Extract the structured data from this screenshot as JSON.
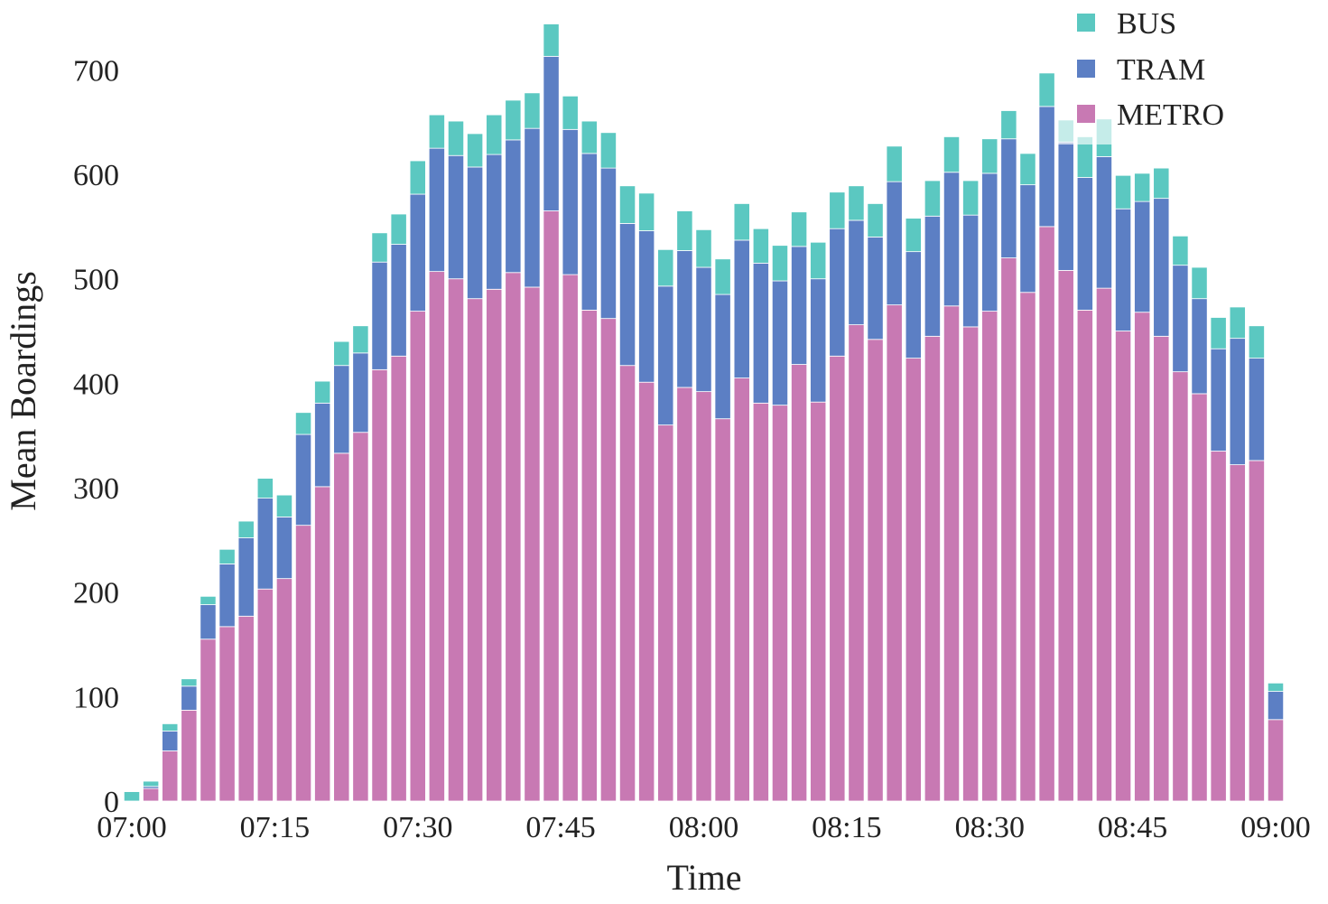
{
  "chart_data": {
    "type": "bar",
    "stacked": true,
    "xlabel": "Time",
    "ylabel": "Mean Boardings",
    "xlim": [
      "07:00",
      "09:00"
    ],
    "ylim": [
      0,
      760
    ],
    "grid": false,
    "legend": {
      "placement": "top-right"
    },
    "xticks": [
      "07:00",
      "07:15",
      "07:30",
      "07:45",
      "08:00",
      "08:15",
      "08:30",
      "08:45",
      "09:00"
    ],
    "yticks": [
      0,
      100,
      200,
      300,
      400,
      500,
      600,
      700
    ],
    "x": [
      "07:00",
      "07:02",
      "07:04",
      "07:06",
      "07:08",
      "07:10",
      "07:12",
      "07:14",
      "07:16",
      "07:18",
      "07:20",
      "07:22",
      "07:24",
      "07:26",
      "07:28",
      "07:30",
      "07:32",
      "07:34",
      "07:36",
      "07:38",
      "07:40",
      "07:42",
      "07:44",
      "07:46",
      "07:48",
      "07:50",
      "07:52",
      "07:54",
      "07:56",
      "07:58",
      "08:00",
      "08:02",
      "08:04",
      "08:06",
      "08:08",
      "08:10",
      "08:12",
      "08:14",
      "08:16",
      "08:18",
      "08:20",
      "08:22",
      "08:24",
      "08:26",
      "08:28",
      "08:30",
      "08:32",
      "08:34",
      "08:36",
      "08:38",
      "08:40",
      "08:42",
      "08:44",
      "08:46",
      "08:48",
      "08:50",
      "08:52",
      "08:54",
      "08:56",
      "08:58",
      "09:00"
    ],
    "series": [
      {
        "name": "METRO",
        "color": "#c879b3",
        "values": [
          0,
          12,
          48,
          87,
          155,
          167,
          177,
          203,
          213,
          264,
          301,
          333,
          353,
          413,
          426,
          469,
          507,
          500,
          481,
          490,
          506,
          492,
          565,
          504,
          470,
          462,
          417,
          401,
          360,
          396,
          392,
          366,
          405,
          381,
          379,
          418,
          382,
          426,
          456,
          442,
          475,
          424,
          445,
          474,
          454,
          469,
          520,
          487,
          550,
          508,
          470,
          491,
          450,
          468,
          445,
          411,
          390,
          335,
          322,
          326,
          78
        ]
      },
      {
        "name": "TRAM",
        "color": "#5c7fc4",
        "values": [
          0,
          2,
          19,
          23,
          33,
          60,
          75,
          87,
          59,
          87,
          80,
          84,
          76,
          103,
          107,
          112,
          118,
          118,
          126,
          129,
          127,
          152,
          148,
          139,
          150,
          144,
          136,
          145,
          133,
          131,
          119,
          119,
          132,
          134,
          119,
          113,
          118,
          122,
          100,
          98,
          118,
          102,
          115,
          128,
          107,
          132,
          114,
          103,
          115,
          123,
          127,
          126,
          117,
          106,
          132,
          102,
          91,
          98,
          121,
          98,
          27
        ]
      },
      {
        "name": "BUS",
        "color": "#5bc8c1",
        "values": [
          9,
          5,
          7,
          7,
          8,
          14,
          16,
          19,
          21,
          21,
          21,
          23,
          26,
          28,
          29,
          32,
          32,
          33,
          32,
          38,
          38,
          34,
          31,
          32,
          31,
          34,
          36,
          36,
          35,
          38,
          36,
          34,
          35,
          33,
          34,
          33,
          35,
          35,
          33,
          32,
          34,
          32,
          34,
          34,
          33,
          33,
          27,
          30,
          32,
          21,
          39,
          36,
          32,
          27,
          29,
          28,
          30,
          30,
          30,
          31,
          8
        ]
      }
    ]
  }
}
